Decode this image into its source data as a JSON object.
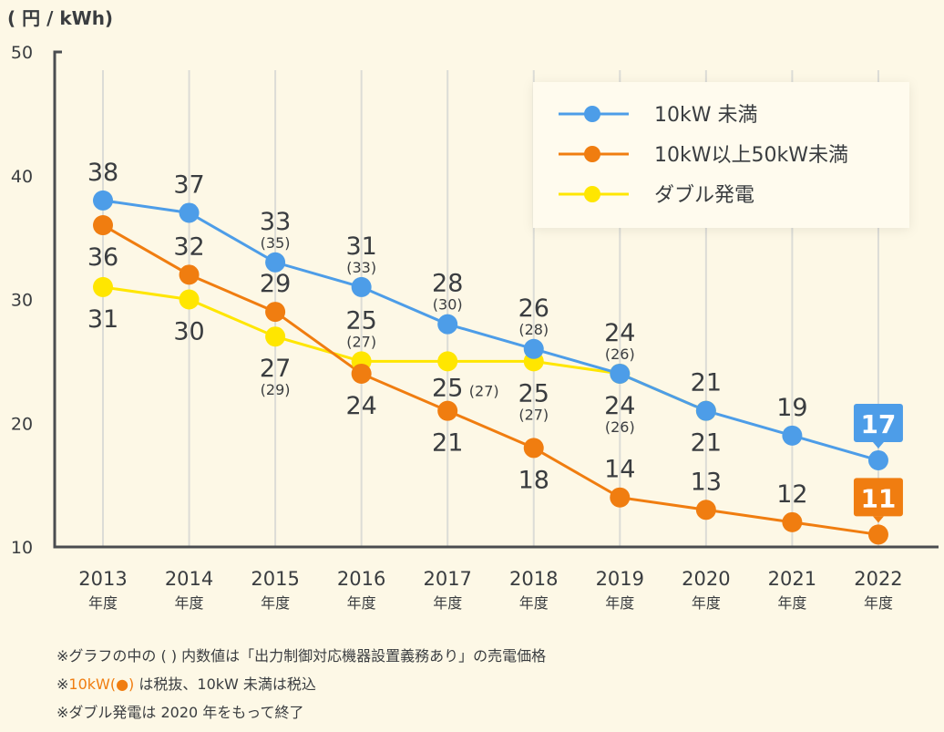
{
  "chart_data": {
    "type": "line",
    "ylabel": "( 円 / kWh)",
    "ylim": [
      10,
      50
    ],
    "yticks": [
      10,
      20,
      30,
      40,
      50
    ],
    "grid": "vertical",
    "legend_position": "top-right",
    "categories": [
      "2013",
      "2014",
      "2015",
      "2016",
      "2017",
      "2018",
      "2019",
      "2020",
      "2021",
      "2022"
    ],
    "category_suffix": "年度",
    "series": [
      {
        "name": "10kW 未満",
        "color": "#4d9de8",
        "values": [
          38,
          37,
          33,
          31,
          28,
          26,
          24,
          21,
          19,
          17
        ],
        "paren_values": [
          null,
          null,
          "(35)",
          "(33)",
          "(30)",
          "(28)",
          "(26)",
          null,
          null,
          null
        ]
      },
      {
        "name": "10kW以上50kW未満",
        "color": "#f07d10",
        "values": [
          36,
          32,
          29,
          24,
          21,
          18,
          14,
          13,
          12,
          11
        ],
        "paren_values": [
          null,
          null,
          null,
          null,
          null,
          null,
          null,
          null,
          null,
          null
        ]
      },
      {
        "name": "ダブル発電",
        "color": "#ffe600",
        "values": [
          31,
          30,
          27,
          25,
          25,
          25,
          24,
          21,
          null,
          null
        ],
        "paren_values": [
          null,
          null,
          "(29)",
          "(27)",
          "(27)",
          "(27)",
          "(26)",
          null,
          null,
          null
        ]
      }
    ]
  },
  "notes": {
    "line1": "※グラフの中の ( ) 内数値は「出力制御対応機器設置義務あり」の売電価格",
    "line2_prefix": "※",
    "line2_highlight": "10kW(●)",
    "line2_rest": " は税抜、10kW 未満は税込",
    "line3": "※ダブル発電は 2020 年をもって終了"
  }
}
